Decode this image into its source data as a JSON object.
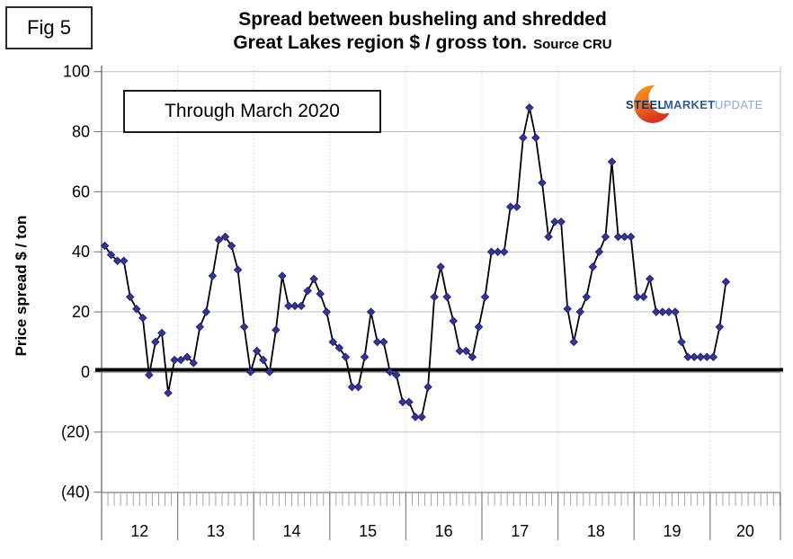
{
  "figure_label": "Fig 5",
  "title": {
    "line1": "Spread between busheling and shredded",
    "line2": "Great Lakes region $ / gross ton.",
    "source": "Source CRU"
  },
  "annotation": {
    "text": "Through March 2020"
  },
  "logo": {
    "word1": "STEEL",
    "word2": "MARKET",
    "word3": "UPDATE"
  },
  "y_axis": {
    "title": "Price spread $ / ton",
    "tick_labels": [
      "100",
      "80",
      "60",
      "40",
      "20",
      "0",
      "(20)",
      "(40)"
    ],
    "tick_values": [
      100,
      80,
      60,
      40,
      20,
      0,
      -20,
      -40
    ]
  },
  "x_axis": {
    "year_labels": [
      "12",
      "13",
      "14",
      "15",
      "16",
      "17",
      "18",
      "19",
      "20"
    ]
  },
  "chart_data": {
    "type": "line",
    "title": "Spread between busheling and shredded — Great Lakes region $ / gross ton",
    "x_range": "Jan 2012 through Mar 2020, monthly",
    "ylabel": "Price spread $ / ton",
    "ylim": [
      -40,
      100
    ],
    "grid": true,
    "marker": "diamond",
    "colors": {
      "marker": "#333399",
      "line": "#000000",
      "zero_line": "#000000",
      "gridline": "#bfbfbf"
    },
    "series": [
      {
        "name": "Busheling minus shredded spread",
        "values": [
          42,
          39,
          37,
          37,
          25,
          21,
          18,
          -1,
          10,
          13,
          -7,
          4,
          4,
          5,
          3,
          15,
          20,
          32,
          44,
          45,
          42,
          34,
          15,
          0,
          7,
          4,
          0,
          14,
          32,
          22,
          22,
          22,
          27,
          31,
          26,
          20,
          10,
          8,
          5,
          -5,
          -5,
          5,
          20,
          10,
          10,
          0,
          -1,
          -10,
          -10,
          -15,
          -15,
          -5,
          25,
          35,
          25,
          17,
          7,
          7,
          5,
          15,
          25,
          40,
          40,
          40,
          55,
          55,
          78,
          88,
          78,
          63,
          45,
          50,
          50,
          21,
          10,
          20,
          25,
          35,
          40,
          45,
          70,
          45,
          45,
          45,
          25,
          25,
          31,
          20,
          20,
          20,
          20,
          10,
          5,
          5,
          5,
          5,
          5,
          15,
          30
        ]
      }
    ]
  }
}
